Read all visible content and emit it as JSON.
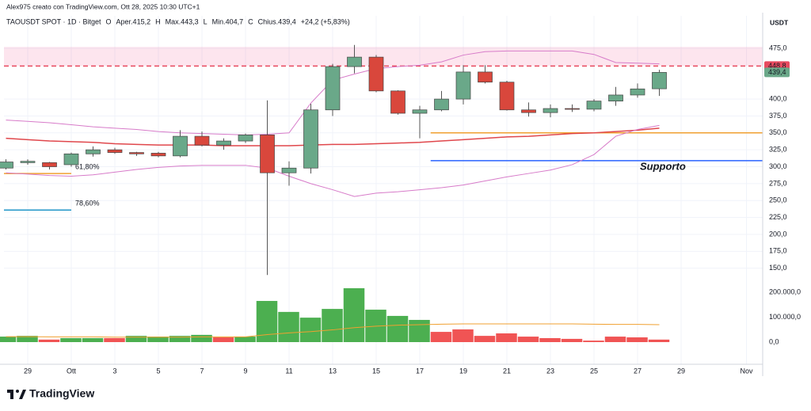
{
  "chart_data": {
    "type": "candlestick",
    "attribution": "Alex975 creato con TradingView.com, Ott 28, 2025 10:30 UTC+1",
    "symbol": "TAOUSDT SPOT · 1D · Bitget",
    "legend_items": [
      {
        "key": "O",
        "text": "Aper.415,2"
      },
      {
        "key": "H",
        "text": "Max.443,3"
      },
      {
        "key": "L",
        "text": "Min.404,7"
      },
      {
        "key": "C",
        "text": "Chius.439,4"
      }
    ],
    "change": "+24,2 (+5,83%)",
    "axis_label": "USDT",
    "brand": "TradingView",
    "categories": [
      null,
      "29",
      null,
      "Ott",
      null,
      "3",
      null,
      "5",
      null,
      "7",
      null,
      "9",
      null,
      "11",
      null,
      "13",
      null,
      "15",
      null,
      "17",
      null,
      "19",
      null,
      "21",
      null,
      "23",
      null,
      "25",
      null,
      "27",
      null,
      "29",
      null,
      null,
      "Nov"
    ],
    "open": [
      298,
      306,
      306,
      303,
      319,
      325,
      321,
      320,
      316,
      345,
      332,
      338,
      347,
      291,
      298,
      384,
      448,
      462,
      412,
      379,
      384,
      400,
      440,
      425,
      384,
      380,
      386,
      385,
      397,
      406,
      415.2,
      null,
      null,
      null,
      null
    ],
    "high": [
      311,
      311,
      307,
      321,
      330,
      328,
      322,
      322,
      354,
      352,
      342,
      349,
      398,
      308,
      393,
      452,
      480,
      465,
      413,
      390,
      412,
      450,
      450,
      427,
      395,
      392,
      392,
      400,
      418,
      423,
      443.3,
      null,
      null,
      null,
      null
    ],
    "low": [
      296,
      303,
      296,
      300,
      315,
      319,
      316,
      314,
      314,
      330,
      325,
      335,
      140,
      272,
      290,
      375,
      438,
      410,
      377,
      342,
      382,
      392,
      423,
      383,
      374,
      373,
      381,
      382,
      390,
      402,
      404.7,
      null,
      null,
      null,
      null
    ],
    "close": [
      307,
      308,
      300,
      319,
      325,
      321,
      319,
      316,
      345,
      332,
      338,
      347,
      291,
      298,
      384,
      448,
      462,
      412,
      379,
      384,
      400,
      440,
      425,
      384,
      380,
      386,
      385,
      397,
      406,
      415,
      439.4,
      null,
      null,
      null,
      null
    ],
    "up_color": "#6aa889",
    "down_color": "#d9473c",
    "volume": [
      22000,
      25000,
      10000,
      16000,
      16000,
      16000,
      25000,
      22000,
      25000,
      29000,
      19000,
      22000,
      165000,
      121000,
      98000,
      133000,
      216000,
      130000,
      105000,
      89000,
      41000,
      51000,
      25000,
      35000,
      22000,
      16000,
      13000,
      6000,
      22000,
      19000,
      10000,
      null,
      null,
      null,
      null
    ],
    "volume_colors": [
      "#4caf50",
      "#4caf50",
      "#f05454",
      "#4caf50",
      "#4caf50",
      "#f05454",
      "#4caf50",
      "#4caf50",
      "#4caf50",
      "#4caf50",
      "#f05454",
      "#4caf50",
      "#4caf50",
      "#4caf50",
      "#4caf50",
      "#4caf50",
      "#4caf50",
      "#4caf50",
      "#4caf50",
      "#4caf50",
      "#f05454",
      "#f05454",
      "#f05454",
      "#f05454",
      "#f05454",
      "#f05454",
      "#f05454",
      "#f05454",
      "#f05454",
      "#f05454",
      "#f05454",
      null,
      null,
      null,
      null
    ],
    "overlays": [
      {
        "color": "#d77bc9",
        "values": [
          369,
          367,
          365,
          362,
          359,
          357,
          355,
          352,
          350,
          349,
          348,
          347,
          348,
          350,
          394,
          428,
          437,
          445,
          448,
          450,
          455,
          465,
          470,
          471,
          471,
          471,
          471,
          466,
          454,
          453,
          452,
          null,
          null,
          null,
          null
        ]
      },
      {
        "color": "#e0474c",
        "values": [
          342,
          340,
          338,
          337,
          336,
          334,
          333,
          332,
          332,
          332,
          331,
          331,
          331,
          331,
          332,
          333,
          333,
          334,
          335,
          336,
          338,
          340,
          342,
          344,
          345,
          347,
          349,
          350,
          352,
          354,
          357,
          null,
          null,
          null,
          null
        ]
      },
      {
        "color": "#d77bc9",
        "values": [
          291,
          289,
          287,
          286,
          288,
          292,
          296,
          299,
          301,
          302,
          302,
          302,
          298,
          286,
          275,
          266,
          256,
          261,
          263,
          266,
          269,
          273,
          279,
          285,
          290,
          295,
          303,
          318,
          345,
          355,
          361,
          null,
          null,
          null,
          null
        ]
      },
      {
        "color": "#f0a030",
        "axis": "y2",
        "values": [
          22000,
          22000,
          21000,
          21000,
          21000,
          20000,
          20000,
          20000,
          20000,
          21000,
          21000,
          21000,
          30000,
          37000,
          42000,
          49000,
          58000,
          64000,
          68000,
          70000,
          72000,
          73000,
          73000,
          73000,
          73000,
          73000,
          73000,
          72000,
          71000,
          71000,
          70000,
          null,
          null,
          null,
          null
        ]
      }
    ],
    "zone": {
      "from": 449,
      "to": 477,
      "color": "rgba(242,54,120,0.13)"
    },
    "levels": [
      {
        "price": 448.8,
        "color": "#e84a5f",
        "dashed": true,
        "from": 0
      },
      {
        "price": 350,
        "color": "#f0a030",
        "dashed": false,
        "from": 20
      },
      {
        "price": 309,
        "color": "#2962ff",
        "dashed": false,
        "from": 20,
        "text": "Supporto"
      },
      {
        "price": 290,
        "color": "#f0a030",
        "dashed": false,
        "from": 0,
        "to": 3,
        "text": "61,80%"
      },
      {
        "price": 236,
        "color": "#2196c9",
        "dashed": false,
        "from": 0,
        "to": 3,
        "text": "78,60%"
      }
    ],
    "price_labels": [
      {
        "value": 448.8,
        "label": "448,8",
        "color": "#e84a5f"
      },
      {
        "value": 439.4,
        "label": "439,4",
        "color": "#6aa889"
      }
    ],
    "ylim": [
      8,
      523
    ],
    "yticks": [
      {
        "value": 150,
        "label": "150,0"
      },
      {
        "value": 175,
        "label": "175,0"
      },
      {
        "value": 200,
        "label": "200,0"
      },
      {
        "value": 225,
        "label": "225,0"
      },
      {
        "value": 250,
        "label": "250,0"
      },
      {
        "value": 275,
        "label": "275,0"
      },
      {
        "value": 300,
        "label": "300,0"
      },
      {
        "value": 325,
        "label": "325,0"
      },
      {
        "value": 350,
        "label": "350,0"
      },
      {
        "value": 375,
        "label": "375,0"
      },
      {
        "value": 400,
        "label": "400,0"
      },
      {
        "value": 475,
        "label": "475,0"
      }
    ],
    "y2lim": [
      -88900,
      1307900
    ],
    "y2ticks": [
      {
        "value": 0,
        "label": "0,0"
      },
      {
        "value": 100000,
        "label": "100.000,0"
      },
      {
        "value": 200000,
        "label": "200.000,0"
      }
    ],
    "grid": true
  }
}
